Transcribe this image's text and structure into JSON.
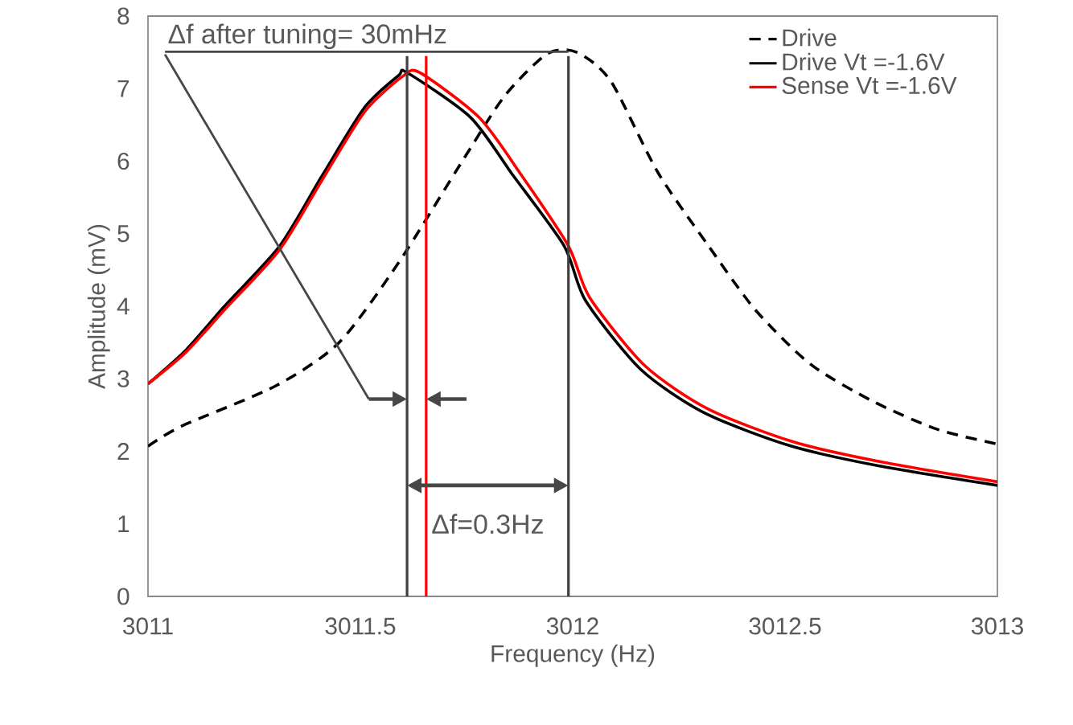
{
  "chart_data": {
    "type": "line",
    "xlabel": "Frequency (Hz)",
    "ylabel": "Amplitude (mV)",
    "xlim": [
      3011,
      3013
    ],
    "xticks": [
      3011,
      3011.5,
      3012,
      3012.5,
      3013
    ],
    "ylim": [
      0,
      8
    ],
    "yticks": [
      0,
      1,
      2,
      3,
      4,
      5,
      6,
      7,
      8
    ],
    "grid": false,
    "legend": "top right",
    "series": [
      {
        "name": "Drive",
        "color": "#000000",
        "line_style": "dashed",
        "x": [
          3011,
          3011.08,
          3011.3,
          3011.45,
          3011.59,
          3011.74,
          3011.84,
          3011.94,
          3012.01,
          3012.09,
          3012.2,
          3012.32,
          3012.43,
          3012.56,
          3012.71,
          3012.86,
          3013
        ],
        "values": [
          2.07,
          2.35,
          2.9,
          3.5,
          4.6,
          6.0,
          6.9,
          7.48,
          7.5,
          7.1,
          5.85,
          4.83,
          3.95,
          3.2,
          2.68,
          2.3,
          2.1
        ]
      },
      {
        "name": "Drive Vt =-1.6V",
        "color": "#000000",
        "line_style": "solid",
        "x": [
          3011,
          3011.09,
          3011.18,
          3011.31,
          3011.41,
          3011.51,
          3011.59,
          3011.61,
          3011.76,
          3011.86,
          3011.98,
          3012.03,
          3012.16,
          3012.31,
          3012.51,
          3012.72,
          3013
        ],
        "values": [
          2.93,
          3.4,
          4.0,
          4.83,
          5.8,
          6.74,
          7.18,
          7.22,
          6.6,
          5.8,
          4.83,
          4.08,
          3.13,
          2.53,
          2.08,
          1.8,
          1.53
        ]
      },
      {
        "name": "Sense  Vt =-1.6V",
        "color": "#ff0000",
        "line_style": "solid",
        "x": [
          3011,
          3011.09,
          3011.18,
          3011.31,
          3011.41,
          3011.51,
          3011.6,
          3011.64,
          3011.78,
          3011.88,
          3011.99,
          3012.04,
          3012.17,
          3012.32,
          3012.52,
          3012.73,
          3013
        ],
        "values": [
          2.93,
          3.37,
          3.95,
          4.78,
          5.74,
          6.68,
          7.17,
          7.22,
          6.6,
          5.8,
          4.83,
          4.12,
          3.18,
          2.58,
          2.13,
          1.85,
          1.58
        ]
      }
    ],
    "ref_lines": [
      {
        "axis": "x",
        "value": 3011.61,
        "color": "#404040"
      },
      {
        "axis": "x",
        "value": 3011.655,
        "color": "#ff0000"
      },
      {
        "axis": "x",
        "value": 3011.99,
        "color": "#404040"
      }
    ],
    "annotations": [
      "Δf after tuning= 30mHz",
      "Δf=0.3Hz"
    ]
  }
}
